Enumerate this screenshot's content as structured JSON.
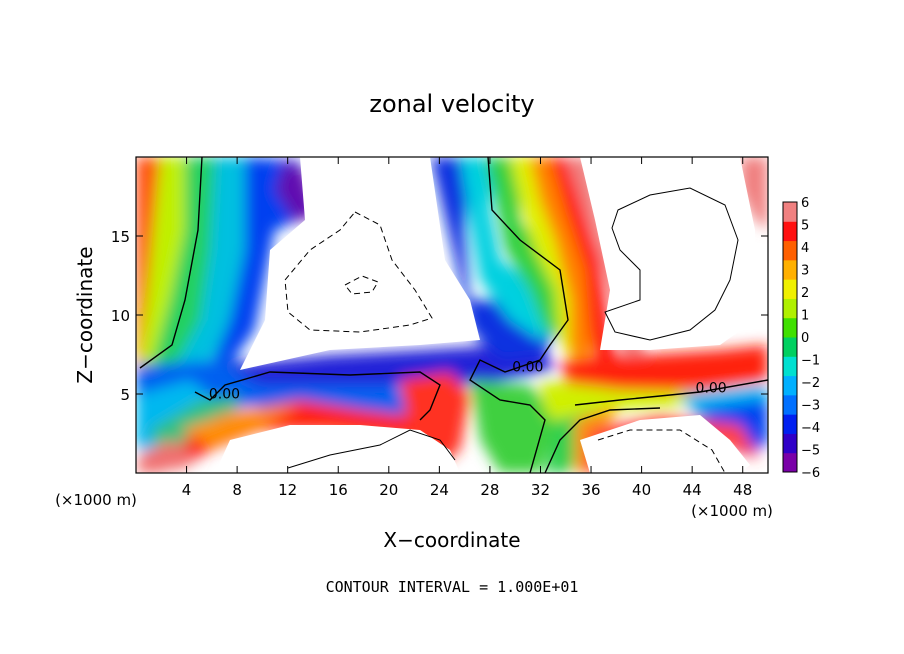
{
  "chart_data": {
    "type": "heatmap",
    "title": "zonal velocity",
    "xlabel": "X−coordinate",
    "ylabel": "Z−coordinate",
    "x_unit_label": "(×1000 m)",
    "y_unit_label": "(×1000 m)",
    "x_ticks": [
      4,
      8,
      12,
      16,
      20,
      24,
      28,
      32,
      36,
      40,
      44,
      48
    ],
    "y_ticks": [
      5,
      10,
      15
    ],
    "xlim": [
      0,
      50
    ],
    "ylim": [
      0,
      20
    ],
    "colorbar": {
      "ticks": [
        "6",
        "5",
        "4",
        "3",
        "2",
        "1",
        "0",
        "−1",
        "−2",
        "−3",
        "−4",
        "−5",
        "−6"
      ],
      "range": [
        -6,
        6
      ],
      "colors": [
        "#7a00a8",
        "#3000c8",
        "#0020f0",
        "#0070ff",
        "#00b0ff",
        "#00e0d0",
        "#00d060",
        "#40e000",
        "#b0f000",
        "#f0f000",
        "#ffb000",
        "#ff6000",
        "#ff1010",
        "#f08080"
      ]
    },
    "contour_labels": [
      {
        "text": "0.00",
        "x": 7,
        "z": 4.9
      },
      {
        "text": "0.00",
        "x": 31,
        "z": 6.6
      },
      {
        "text": "0.00",
        "x": 45.5,
        "z": 5.3
      }
    ],
    "footer": "CONTOUR INTERVAL =  1.000E+01"
  }
}
